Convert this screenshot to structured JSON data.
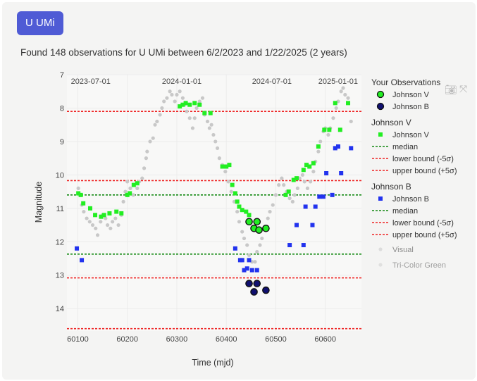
{
  "header": {
    "star_button_label": "U UMi"
  },
  "summary": {
    "text": "Found 148 observations for U UMi between 6/2/2023 and 1/22/2025 (2 years)"
  },
  "modebar": {
    "icons": [
      "camera-icon",
      "autoscale-icon"
    ]
  },
  "colors": {
    "johnson_v": "#22ee22",
    "johnson_b": "#2233ee",
    "visual": "#c8c8c8",
    "median": "#118811",
    "bound": "#ee2222",
    "gridline": "#ececec"
  },
  "chart_data": {
    "type": "scatter",
    "xlabel": "Time (mjd)",
    "ylabel": "Magnitude",
    "xlim": [
      60078,
      60673
    ],
    "ylim": [
      14.67,
      7.0
    ],
    "y_inverted": true,
    "x_ticks": [
      60100,
      60200,
      60300,
      60400,
      60500,
      60600
    ],
    "y_ticks": [
      7,
      8,
      9,
      10,
      11,
      12,
      13,
      14
    ],
    "date_ticks": [
      {
        "label": "2023-07-01",
        "mjd": 60126
      },
      {
        "label": "2024-01-01",
        "mjd": 60310
      },
      {
        "label": "2024-07-01",
        "mjd": 60492
      },
      {
        "label": "2025-01-01",
        "mjd": 60676
      }
    ],
    "legend": {
      "your_observations": {
        "title": "Your Observations",
        "items": [
          {
            "label": "Johnson V"
          },
          {
            "label": "Johnson B"
          }
        ]
      },
      "johnson_v": {
        "title": "Johnson V",
        "items": [
          {
            "label": "Johnson V"
          },
          {
            "label": "median"
          },
          {
            "label": "lower bound (-5σ)"
          },
          {
            "label": "upper bound (+5σ)"
          }
        ]
      },
      "johnson_b": {
        "title": "Johnson B",
        "items": [
          {
            "label": "Johnson B"
          },
          {
            "label": "median"
          },
          {
            "label": "lower bound (-5σ)"
          },
          {
            "label": "upper bound (+5σ)"
          }
        ]
      },
      "hidden": [
        {
          "label": "Visual"
        },
        {
          "label": "Tri-Color Green"
        }
      ]
    },
    "reference_lines": [
      {
        "name": "Johnson V upper bound (+5σ)",
        "y": 8.1,
        "style": "dotted-red"
      },
      {
        "name": "Johnson V lower bound (-5σ)",
        "y": 10.17,
        "style": "dotted-red"
      },
      {
        "name": "Johnson V median",
        "y": 10.6,
        "style": "dotted-green"
      },
      {
        "name": "Johnson B median",
        "y": 12.37,
        "style": "dotted-green"
      },
      {
        "name": "Johnson B upper bound (+5σ)",
        "y": 13.08,
        "style": "dotted-red"
      },
      {
        "name": "Johnson B lower bound (-5σ)",
        "y": 14.6,
        "style": "dotted-red"
      }
    ],
    "series": [
      {
        "name": "Visual",
        "marker": "circle-grey",
        "points": [
          [
            60101,
            10.4
          ],
          [
            60104,
            10.6
          ],
          [
            60108,
            10.9
          ],
          [
            60112,
            11.1
          ],
          [
            60118,
            11.3
          ],
          [
            60124,
            11.4
          ],
          [
            60130,
            11.5
          ],
          [
            60136,
            11.6
          ],
          [
            60140,
            11.8
          ],
          [
            60146,
            11.4
          ],
          [
            60150,
            11.2
          ],
          [
            60156,
            11.3
          ],
          [
            60160,
            11.5
          ],
          [
            60166,
            11.6
          ],
          [
            60170,
            11.4
          ],
          [
            60176,
            11.3
          ],
          [
            60182,
            11.5
          ],
          [
            60188,
            11.2
          ],
          [
            60192,
            10.8
          ],
          [
            60196,
            10.5
          ],
          [
            60200,
            10.2
          ],
          [
            60206,
            10.4
          ],
          [
            60212,
            10.6
          ],
          [
            60220,
            10.4
          ],
          [
            60224,
            10.2
          ],
          [
            60230,
            10.1
          ],
          [
            60234,
            9.8
          ],
          [
            60238,
            9.5
          ],
          [
            60240,
            9.3
          ],
          [
            60246,
            9.0
          ],
          [
            60252,
            8.9
          ],
          [
            60256,
            8.5
          ],
          [
            60260,
            8.4
          ],
          [
            60266,
            8.2
          ],
          [
            60270,
            8.0
          ],
          [
            60274,
            7.8
          ],
          [
            60280,
            7.7
          ],
          [
            60286,
            7.5
          ],
          [
            60290,
            7.6
          ],
          [
            60296,
            7.8
          ],
          [
            60300,
            7.6
          ],
          [
            60306,
            7.5
          ],
          [
            60312,
            7.7
          ],
          [
            60316,
            7.9
          ],
          [
            60320,
            8.1
          ],
          [
            60326,
            8.3
          ],
          [
            60332,
            8.6
          ],
          [
            60336,
            8.3
          ],
          [
            60340,
            8.0
          ],
          [
            60346,
            7.8
          ],
          [
            60352,
            7.7
          ],
          [
            60356,
            8.2
          ],
          [
            60362,
            8.4
          ],
          [
            60366,
            8.6
          ],
          [
            60370,
            8.5
          ],
          [
            60374,
            8.8
          ],
          [
            60378,
            9.0
          ],
          [
            60382,
            9.2
          ],
          [
            60386,
            9.5
          ],
          [
            60392,
            9.7
          ],
          [
            60398,
            9.9
          ],
          [
            60404,
            10.2
          ],
          [
            60410,
            10.5
          ],
          [
            60416,
            10.8
          ],
          [
            60422,
            11.1
          ],
          [
            60426,
            11.4
          ],
          [
            60432,
            11.7
          ],
          [
            60436,
            11.9
          ],
          [
            60442,
            12.1
          ],
          [
            60446,
            12.4
          ],
          [
            60452,
            12.6
          ],
          [
            60458,
            12.6
          ],
          [
            60462,
            12.3
          ],
          [
            60468,
            12.1
          ],
          [
            60472,
            11.9
          ],
          [
            60478,
            11.6
          ],
          [
            60484,
            11.3
          ],
          [
            60488,
            11.1
          ],
          [
            60494,
            10.9
          ],
          [
            60500,
            10.6
          ],
          [
            60506,
            10.3
          ],
          [
            60512,
            10.1
          ],
          [
            60516,
            10.3
          ],
          [
            60522,
            10.5
          ],
          [
            60528,
            10.7
          ],
          [
            60534,
            10.8
          ],
          [
            60538,
            10.6
          ],
          [
            60544,
            10.4
          ],
          [
            60548,
            10.1
          ],
          [
            60554,
            10.0
          ],
          [
            60558,
            10.2
          ],
          [
            60564,
            10.4
          ],
          [
            60570,
            10.2
          ],
          [
            60576,
            9.9
          ],
          [
            60580,
            9.6
          ],
          [
            60586,
            9.3
          ],
          [
            60590,
            9.0
          ],
          [
            60596,
            8.7
          ],
          [
            60600,
            8.6
          ],
          [
            60606,
            8.8
          ],
          [
            60610,
            8.6
          ],
          [
            60616,
            8.3
          ],
          [
            60622,
            8.0
          ],
          [
            60626,
            7.8
          ],
          [
            60632,
            7.5
          ],
          [
            60636,
            7.4
          ],
          [
            60640,
            7.6
          ],
          [
            60646,
            7.7
          ],
          [
            60652,
            8.4
          ]
        ]
      },
      {
        "name": "Johnson V",
        "marker": "square-green",
        "points": [
          [
            60101,
            10.55
          ],
          [
            60106,
            10.6
          ],
          [
            60111,
            10.85
          ],
          [
            60125,
            11.0
          ],
          [
            60135,
            11.2
          ],
          [
            60147,
            11.25
          ],
          [
            60153,
            11.2
          ],
          [
            60164,
            11.15
          ],
          [
            60178,
            11.1
          ],
          [
            60188,
            11.15
          ],
          [
            60200,
            10.6
          ],
          [
            60205,
            10.55
          ],
          [
            60213,
            10.3
          ],
          [
            60220,
            10.25
          ],
          [
            60306,
            7.95
          ],
          [
            60312,
            7.9
          ],
          [
            60318,
            7.85
          ],
          [
            60326,
            7.9
          ],
          [
            60336,
            7.85
          ],
          [
            60346,
            7.9
          ],
          [
            60356,
            8.15
          ],
          [
            60368,
            8.15
          ],
          [
            60392,
            9.75
          ],
          [
            60400,
            9.75
          ],
          [
            60406,
            9.7
          ],
          [
            60412,
            10.3
          ],
          [
            60418,
            10.55
          ],
          [
            60422,
            10.8
          ],
          [
            60426,
            10.95
          ],
          [
            60432,
            11.05
          ],
          [
            60440,
            11.1
          ],
          [
            60446,
            11.2
          ],
          [
            60520,
            10.6
          ],
          [
            60526,
            10.5
          ],
          [
            60536,
            10.15
          ],
          [
            60542,
            10.1
          ],
          [
            60556,
            9.85
          ],
          [
            60562,
            9.7
          ],
          [
            60568,
            9.75
          ],
          [
            60576,
            9.65
          ],
          [
            60586,
            9.15
          ],
          [
            60598,
            8.65
          ],
          [
            60608,
            8.65
          ],
          [
            60620,
            7.85
          ],
          [
            60630,
            8.65
          ],
          [
            60646,
            7.85
          ]
        ]
      },
      {
        "name": "Johnson B",
        "marker": "square-blue",
        "points": [
          [
            60098,
            12.2
          ],
          [
            60108,
            12.55
          ],
          [
            60418,
            12.2
          ],
          [
            60428,
            12.55
          ],
          [
            60432,
            12.55
          ],
          [
            60436,
            12.85
          ],
          [
            60442,
            12.8
          ],
          [
            60446,
            12.55
          ],
          [
            60452,
            12.85
          ],
          [
            60462,
            12.85
          ],
          [
            60528,
            12.1
          ],
          [
            60542,
            11.5
          ],
          [
            60556,
            12.1
          ],
          [
            60560,
            10.95
          ],
          [
            60574,
            11.5
          ],
          [
            60580,
            10.95
          ],
          [
            60588,
            10.65
          ],
          [
            60596,
            10.65
          ],
          [
            60602,
            9.95
          ],
          [
            60614,
            10.6
          ],
          [
            60620,
            9.2
          ],
          [
            60626,
            9.15
          ],
          [
            60632,
            9.95
          ],
          [
            60652,
            9.2
          ]
        ]
      },
      {
        "name": "Your Observations - Johnson V",
        "marker": "circle-green-outlined",
        "points": [
          [
            60446,
            11.4
          ],
          [
            60456,
            11.6
          ],
          [
            60462,
            11.4
          ],
          [
            60466,
            11.65
          ],
          [
            60480,
            11.6
          ]
        ]
      },
      {
        "name": "Your Observations - Johnson B",
        "marker": "circle-navy-outlined",
        "points": [
          [
            60446,
            13.25
          ],
          [
            60456,
            13.5
          ],
          [
            60462,
            13.25
          ],
          [
            60480,
            13.45
          ]
        ]
      }
    ]
  }
}
